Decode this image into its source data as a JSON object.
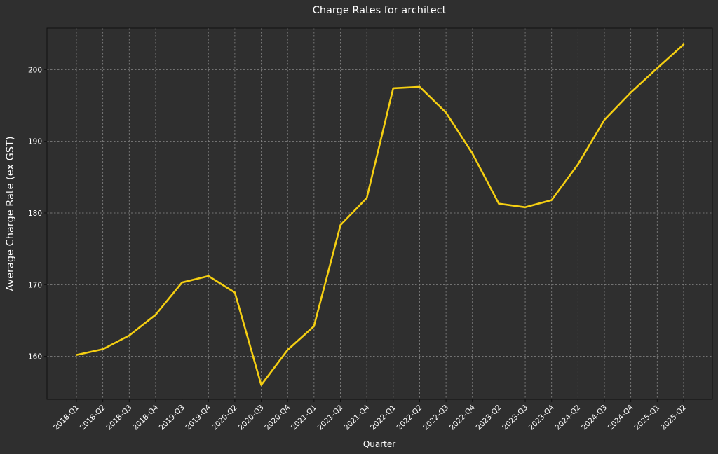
{
  "chart_data": {
    "type": "line",
    "title": "Charge Rates for architect",
    "xlabel": "Quarter",
    "ylabel": "Average Charge Rate (ex GST)",
    "categories": [
      "2018-Q1",
      "2018-Q2",
      "2018-Q3",
      "2018-Q4",
      "2019-Q3",
      "2019-Q4",
      "2020-Q2",
      "2020-Q3",
      "2020-Q4",
      "2021-Q1",
      "2021-Q2",
      "2021-Q4",
      "2022-Q1",
      "2022-Q2",
      "2022-Q3",
      "2022-Q4",
      "2023-Q2",
      "2023-Q3",
      "2023-Q4",
      "2024-Q2",
      "2024-Q3",
      "2024-Q4",
      "2025-Q1",
      "2025-Q2"
    ],
    "series": [
      {
        "values": [
          160.2,
          161.0,
          162.9,
          165.8,
          170.3,
          171.2,
          168.9,
          156.0,
          160.9,
          164.2,
          178.3,
          182.1,
          197.4,
          197.6,
          194.0,
          188.3,
          181.3,
          180.8,
          181.8,
          186.8,
          193.0,
          196.8,
          200.2,
          203.5
        ],
        "color": "#f5cf12"
      }
    ],
    "yticks": [
      160,
      170,
      180,
      190,
      200
    ],
    "ylim": [
      154.0,
      205.8
    ],
    "grid": true,
    "legend": "none"
  }
}
